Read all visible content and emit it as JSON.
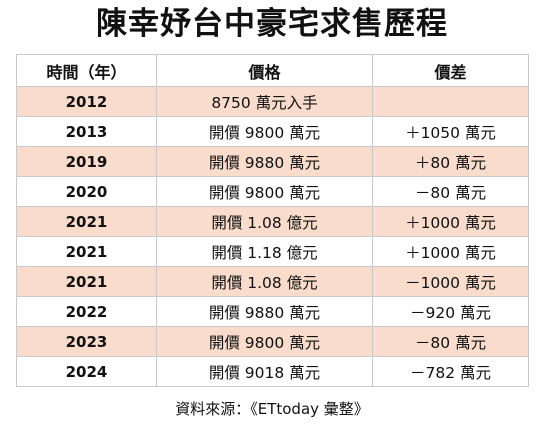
{
  "title": "陳幸妤台中豪宅求售歷程",
  "headers": {
    "year": "時間（年）",
    "price": "價格",
    "diff": "價差"
  },
  "rows": [
    {
      "year": "2012",
      "price": "8750 萬元入手",
      "diff": ""
    },
    {
      "year": "2013",
      "price": "開價 9800 萬元",
      "diff": "＋1050 萬元"
    },
    {
      "year": "2019",
      "price": "開價 9880 萬元",
      "diff": "＋80 萬元"
    },
    {
      "year": "2020",
      "price": "開價 9800 萬元",
      "diff": "－80 萬元"
    },
    {
      "year": "2021",
      "price": "開價 1.08 億元",
      "diff": "＋1000 萬元"
    },
    {
      "year": "2021",
      "price": "開價 1.18 億元",
      "diff": "＋1000 萬元"
    },
    {
      "year": "2021",
      "price": "開價 1.08 億元",
      "diff": "－1000 萬元"
    },
    {
      "year": "2022",
      "price": "開價 9880 萬元",
      "diff": "－920 萬元"
    },
    {
      "year": "2023",
      "price": "開價 9800 萬元",
      "diff": "－80 萬元"
    },
    {
      "year": "2024",
      "price": "開價 9018 萬元",
      "diff": "－782 萬元"
    }
  ],
  "source": "資料來源：《ETtoday 彙整》",
  "colors": {
    "row_shade": "#f9dccb",
    "row_plain": "#ffffff",
    "border": "#c9c9c9"
  }
}
